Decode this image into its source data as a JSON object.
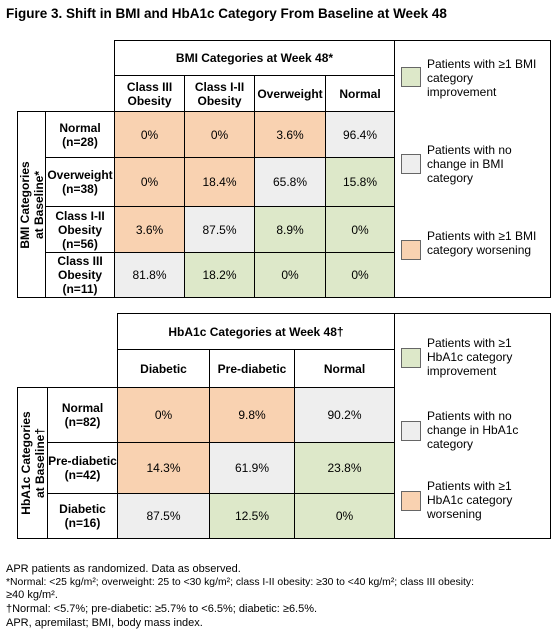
{
  "title": "Figure 3. Shift in BMI and HbA1c Category From Baseline at Week 48",
  "colors": {
    "improvement": "#dde8c9",
    "no_change": "#eeeeee",
    "worsening": "#f9d2b1"
  },
  "bmi": {
    "col_header": "BMI Categories at Week 48*",
    "row_header_line1": "BMI Categories",
    "row_header_line2": "at Baseline*",
    "columns": [
      "Class III Obesity",
      "Class I-II Obesity",
      "Overweight",
      "Normal"
    ],
    "rows": [
      {
        "label": "Normal (n=28)",
        "values": [
          "0%",
          "0%",
          "3.6%",
          "96.4%"
        ]
      },
      {
        "label": "Overweight (n=38)",
        "values": [
          "0%",
          "18.4%",
          "65.8%",
          "15.8%"
        ]
      },
      {
        "label": "Class I-II Obesity (n=56)",
        "values": [
          "3.6%",
          "87.5%",
          "8.9%",
          "0%"
        ]
      },
      {
        "label": "Class III Obesity (n=11)",
        "values": [
          "81.8%",
          "18.2%",
          "0%",
          "0%"
        ]
      }
    ],
    "legend": {
      "improvement": "Patients with ≥1 BMI category improvement",
      "no_change": "Patients with no change in BMI category",
      "worsening": "Patients with ≥1 BMI category worsening"
    }
  },
  "hba1c": {
    "col_header": "HbA1c Categories at Week 48†",
    "row_header_line1": "HbA1c Categories",
    "row_header_line2": "at Baseline†",
    "columns": [
      "Diabetic",
      "Pre-diabetic",
      "Normal"
    ],
    "rows": [
      {
        "label": "Normal (n=82)",
        "values": [
          "0%",
          "9.8%",
          "90.2%"
        ]
      },
      {
        "label": "Pre-diabetic (n=42)",
        "values": [
          "14.3%",
          "61.9%",
          "23.8%"
        ]
      },
      {
        "label": "Diabetic (n=16)",
        "values": [
          "87.5%",
          "12.5%",
          "0%"
        ]
      }
    ],
    "legend": {
      "improvement": "Patients with ≥1 HbA1c category improvement",
      "no_change": "Patients with no change in HbA1c category",
      "worsening": "Patients with ≥1 HbA1c category worsening"
    }
  },
  "footnotes": {
    "line1": "APR patients as randomized. Data as observed.",
    "line2": "*Normal: <25 kg/m²; overweight: 25 to <30 kg/m²; class I-II obesity: ≥30 to <40 kg/m²; class III obesity:",
    "line3": "≥40 kg/m².",
    "line4": "†Normal: <5.7%; pre-diabetic: ≥5.7% to <6.5%; diabetic: ≥6.5%.",
    "line5": "APR, apremilast; BMI, body mass index."
  }
}
